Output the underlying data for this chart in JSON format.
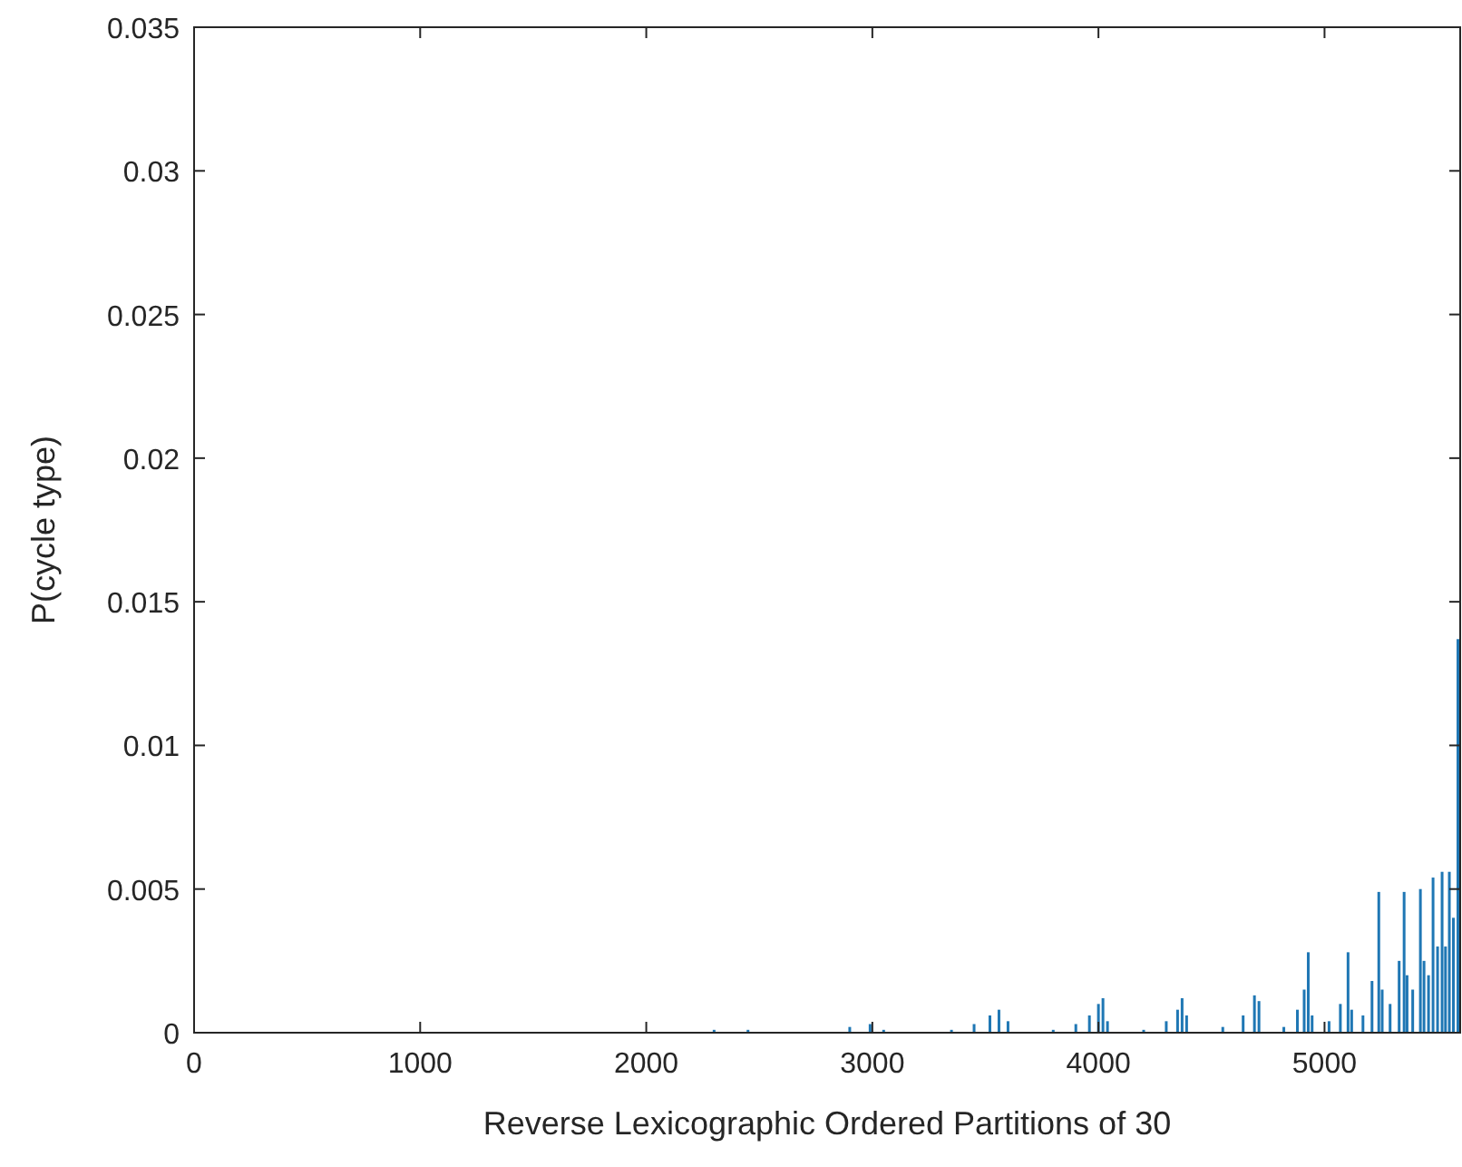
{
  "chart_data": {
    "type": "bar",
    "xlabel": "Reverse Lexicographic Ordered Partitions of 30",
    "ylabel": "P(cycle type)",
    "color": "#1f77b4",
    "x": [
      2300,
      2450,
      2900,
      2990,
      3050,
      3350,
      3450,
      3520,
      3560,
      3600,
      3800,
      3900,
      3960,
      4000,
      4020,
      4040,
      4200,
      4300,
      4350,
      4370,
      4390,
      4550,
      4640,
      4690,
      4710,
      4820,
      4880,
      4910,
      4928,
      4945,
      5020,
      5070,
      5104,
      5120,
      5170,
      5210,
      5240,
      5255,
      5290,
      5330,
      5352,
      5365,
      5390,
      5424,
      5440,
      5460,
      5480,
      5500,
      5520,
      5535,
      5552,
      5570,
      5590
    ],
    "values": [
      0.0001,
      0.0001,
      0.0002,
      0.0003,
      0.0001,
      0.0001,
      0.0003,
      0.0006,
      0.0008,
      0.0004,
      0.0001,
      0.0003,
      0.0006,
      0.001,
      0.0012,
      0.0004,
      0.0001,
      0.0004,
      0.0008,
      0.0012,
      0.0006,
      0.0002,
      0.0006,
      0.0013,
      0.0011,
      0.0002,
      0.0008,
      0.0015,
      0.0028,
      0.0006,
      0.0004,
      0.001,
      0.0028,
      0.0008,
      0.0006,
      0.0018,
      0.0049,
      0.0015,
      0.001,
      0.0025,
      0.0049,
      0.002,
      0.0015,
      0.005,
      0.0025,
      0.002,
      0.0054,
      0.003,
      0.0056,
      0.003,
      0.0056,
      0.004,
      0.0137
    ],
    "xlim": [
      0,
      5600
    ],
    "xticks": [
      0,
      1000,
      2000,
      3000,
      4000,
      5000
    ],
    "ylim": [
      0,
      0.035
    ],
    "yticks": [
      0,
      0.005,
      0.01,
      0.015,
      0.02,
      0.025,
      0.03,
      0.035
    ],
    "grid": false
  }
}
